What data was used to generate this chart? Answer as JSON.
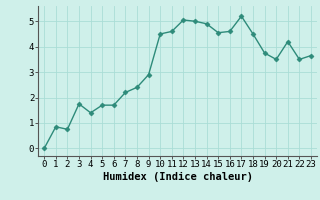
{
  "x": [
    0,
    1,
    2,
    3,
    4,
    5,
    6,
    7,
    8,
    9,
    10,
    11,
    12,
    13,
    14,
    15,
    16,
    17,
    18,
    19,
    20,
    21,
    22,
    23
  ],
  "y": [
    0.0,
    0.85,
    0.75,
    1.75,
    1.4,
    1.7,
    1.7,
    2.2,
    2.4,
    2.9,
    4.5,
    4.6,
    5.05,
    5.0,
    4.9,
    4.55,
    4.6,
    5.2,
    4.5,
    3.75,
    3.5,
    4.2,
    3.5,
    3.65
  ],
  "line_color": "#2e8b7a",
  "marker": "D",
  "marker_size": 2.5,
  "linewidth": 1.0,
  "xlabel": "Humidex (Indice chaleur)",
  "ylim": [
    -0.3,
    5.6
  ],
  "xlim": [
    -0.5,
    23.5
  ],
  "yticks": [
    0,
    1,
    2,
    3,
    4,
    5
  ],
  "xticks": [
    0,
    1,
    2,
    3,
    4,
    5,
    6,
    7,
    8,
    9,
    10,
    11,
    12,
    13,
    14,
    15,
    16,
    17,
    18,
    19,
    20,
    21,
    22,
    23
  ],
  "bg_color": "#cff0ea",
  "grid_color": "#aaddd6",
  "tick_fontsize": 6.5,
  "label_fontsize": 7.5
}
